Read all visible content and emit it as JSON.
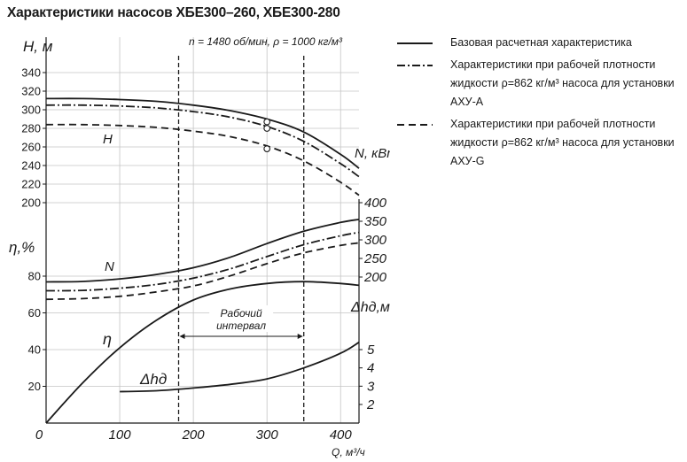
{
  "title": "Характеристики насосов ХБЕ300–260,  ХБЕ300-280",
  "subtitle": "n = 1480 об/мин, ρ = 1000 кг/м³",
  "legend": [
    {
      "style": "solid",
      "text": "Базовая расчетная характеристика"
    },
    {
      "style": "dashdot",
      "text": "Характеристики при рабочей плотности жидкости ρ=862 кг/м³ насоса для установки АХУ-А"
    },
    {
      "style": "dashed",
      "text": "Характеристики при рабочей плотности жидкости ρ=862 кг/м³ насоса для установки АХУ-G"
    }
  ],
  "chart_data": {
    "type": "line",
    "xlabel": "Q, м³/ч",
    "x_ticks": [
      0,
      100,
      200,
      300,
      400
    ],
    "xlim": [
      0,
      425
    ],
    "working_interval": {
      "label": [
        "Рабочий",
        "интервал"
      ],
      "x": [
        180,
        350
      ]
    },
    "axes": {
      "H": {
        "label": "H, м",
        "ticks": [
          200,
          220,
          240,
          260,
          280,
          300,
          320,
          340
        ]
      },
      "eta": {
        "label": "η,%",
        "ticks": [
          20,
          40,
          60,
          80
        ]
      },
      "N": {
        "label": "N, кВт",
        "ticks": [
          200,
          250,
          300,
          350,
          400
        ]
      },
      "dh": {
        "label": "Δhд,м",
        "ticks": [
          2,
          3,
          4,
          5
        ]
      }
    },
    "curve_labels": {
      "H": "H",
      "N": "N",
      "eta": "η",
      "dh": "Δhд"
    },
    "series": [
      {
        "name": "H",
        "axis": "H",
        "style": "solid",
        "x": [
          0,
          50,
          100,
          150,
          200,
          250,
          300,
          350,
          400,
          425
        ],
        "y": [
          312,
          312,
          311,
          309,
          305,
          299,
          290,
          276,
          252,
          237
        ]
      },
      {
        "name": "H",
        "axis": "H",
        "style": "dashdot",
        "x": [
          0,
          50,
          100,
          150,
          200,
          250,
          300,
          350,
          400,
          425
        ],
        "y": [
          305,
          305,
          304,
          302,
          298,
          292,
          282,
          266,
          242,
          228
        ]
      },
      {
        "name": "H",
        "axis": "H",
        "style": "dashed",
        "x": [
          0,
          50,
          100,
          150,
          200,
          250,
          300,
          350,
          400,
          425
        ],
        "y": [
          284,
          284,
          283,
          281,
          277,
          271,
          261,
          245,
          222,
          208
        ]
      },
      {
        "name": "N",
        "axis": "N",
        "style": "solid",
        "x": [
          0,
          50,
          100,
          150,
          200,
          250,
          300,
          350,
          400,
          425
        ],
        "y": [
          187,
          188,
          195,
          207,
          225,
          253,
          290,
          323,
          347,
          355
        ]
      },
      {
        "name": "N",
        "axis": "N",
        "style": "dashdot",
        "x": [
          0,
          50,
          100,
          150,
          200,
          250,
          300,
          350,
          400,
          425
        ],
        "y": [
          163,
          164,
          170,
          180,
          197,
          222,
          255,
          287,
          311,
          320
        ]
      },
      {
        "name": "N",
        "axis": "N",
        "style": "dashed",
        "x": [
          0,
          50,
          100,
          150,
          200,
          250,
          300,
          350,
          400,
          425
        ],
        "y": [
          140,
          142,
          148,
          160,
          176,
          203,
          236,
          265,
          285,
          292
        ]
      },
      {
        "name": "η",
        "axis": "eta",
        "style": "solid",
        "x": [
          0,
          50,
          100,
          150,
          200,
          250,
          300,
          350,
          400,
          425
        ],
        "y": [
          0,
          22,
          41,
          56,
          67,
          73,
          76,
          77,
          76,
          75
        ]
      },
      {
        "name": "Δhд",
        "axis": "dh",
        "style": "solid",
        "x": [
          100,
          150,
          200,
          250,
          300,
          350,
          400,
          425
        ],
        "y": [
          2.7,
          2.75,
          2.9,
          3.1,
          3.4,
          4.0,
          4.8,
          5.4
        ]
      }
    ],
    "markers": [
      {
        "axis": "H",
        "x": 300,
        "y": 287
      },
      {
        "axis": "H",
        "x": 300,
        "y": 280
      },
      {
        "axis": "H",
        "x": 300,
        "y": 258
      }
    ]
  }
}
